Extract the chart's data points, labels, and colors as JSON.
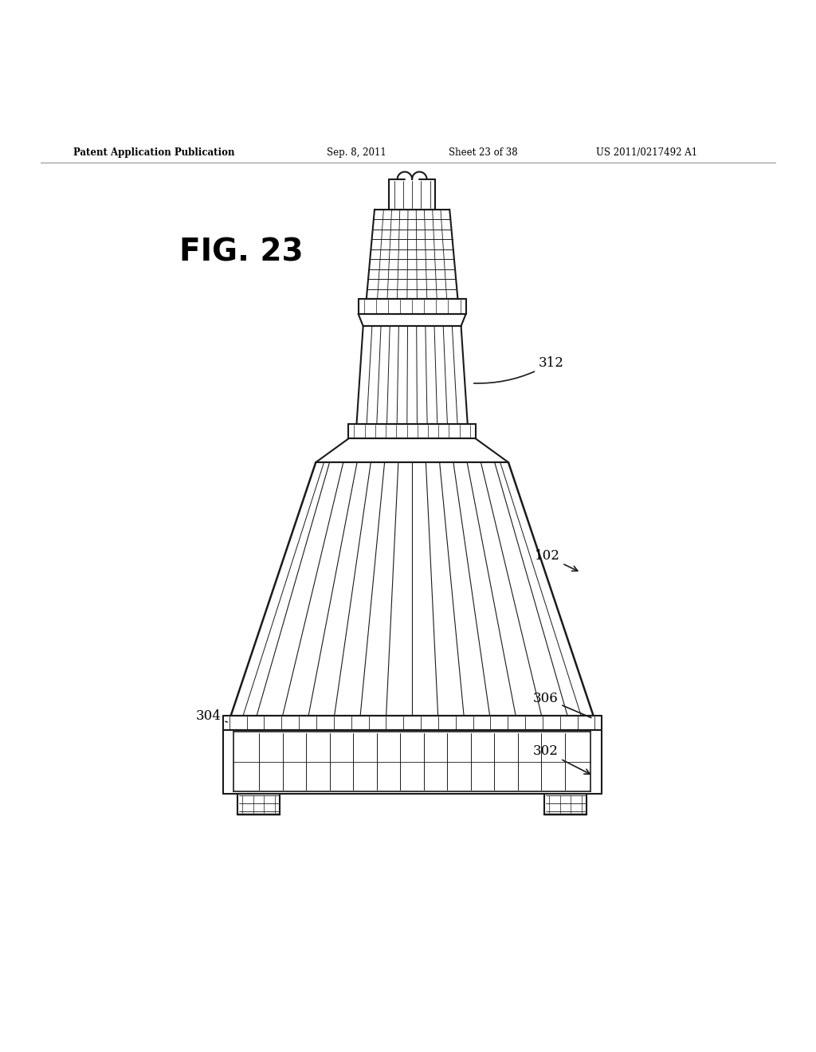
{
  "bg_color": "#ffffff",
  "header_left": "Patent Application Publication",
  "header_mid": "Sep. 8, 2011",
  "header_mid2": "Sheet 23 of 38",
  "header_right": "US 2011/0217492 A1",
  "fig_label": "FIG. 23",
  "line_color": "#1a1a1a",
  "line_width": 1.5
}
